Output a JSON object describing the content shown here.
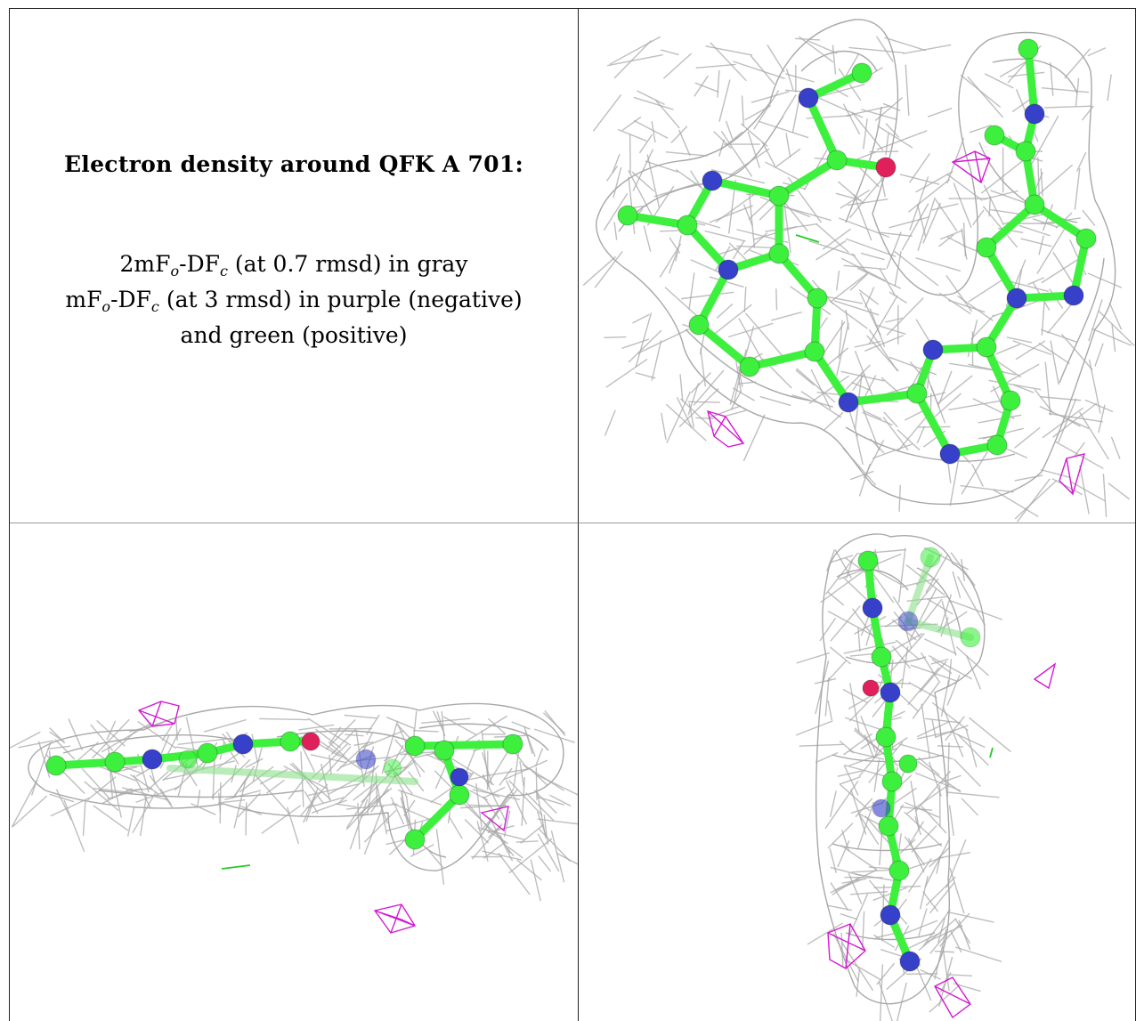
{
  "caption": {
    "title": "Electron density around QFK A 701:",
    "line1": {
      "a": "2mF",
      "o": "o",
      "b": "-DF",
      "c": "c",
      "rest": " (at 0.7 rmsd) in gray"
    },
    "line2": {
      "a": "mF",
      "o": "o",
      "b": "-DF",
      "c": "c",
      "rest": " (at 3 rmsd) in purple (negative)"
    },
    "line3": "and green (positive)"
  },
  "colors": {
    "mesh": "#a8a8a8",
    "carbon": "#3ef03e",
    "nitrogen": "#3640c8",
    "oxygen": "#e0205a",
    "negative_density": "#d21ad2",
    "positive_density": "#22cc22"
  }
}
